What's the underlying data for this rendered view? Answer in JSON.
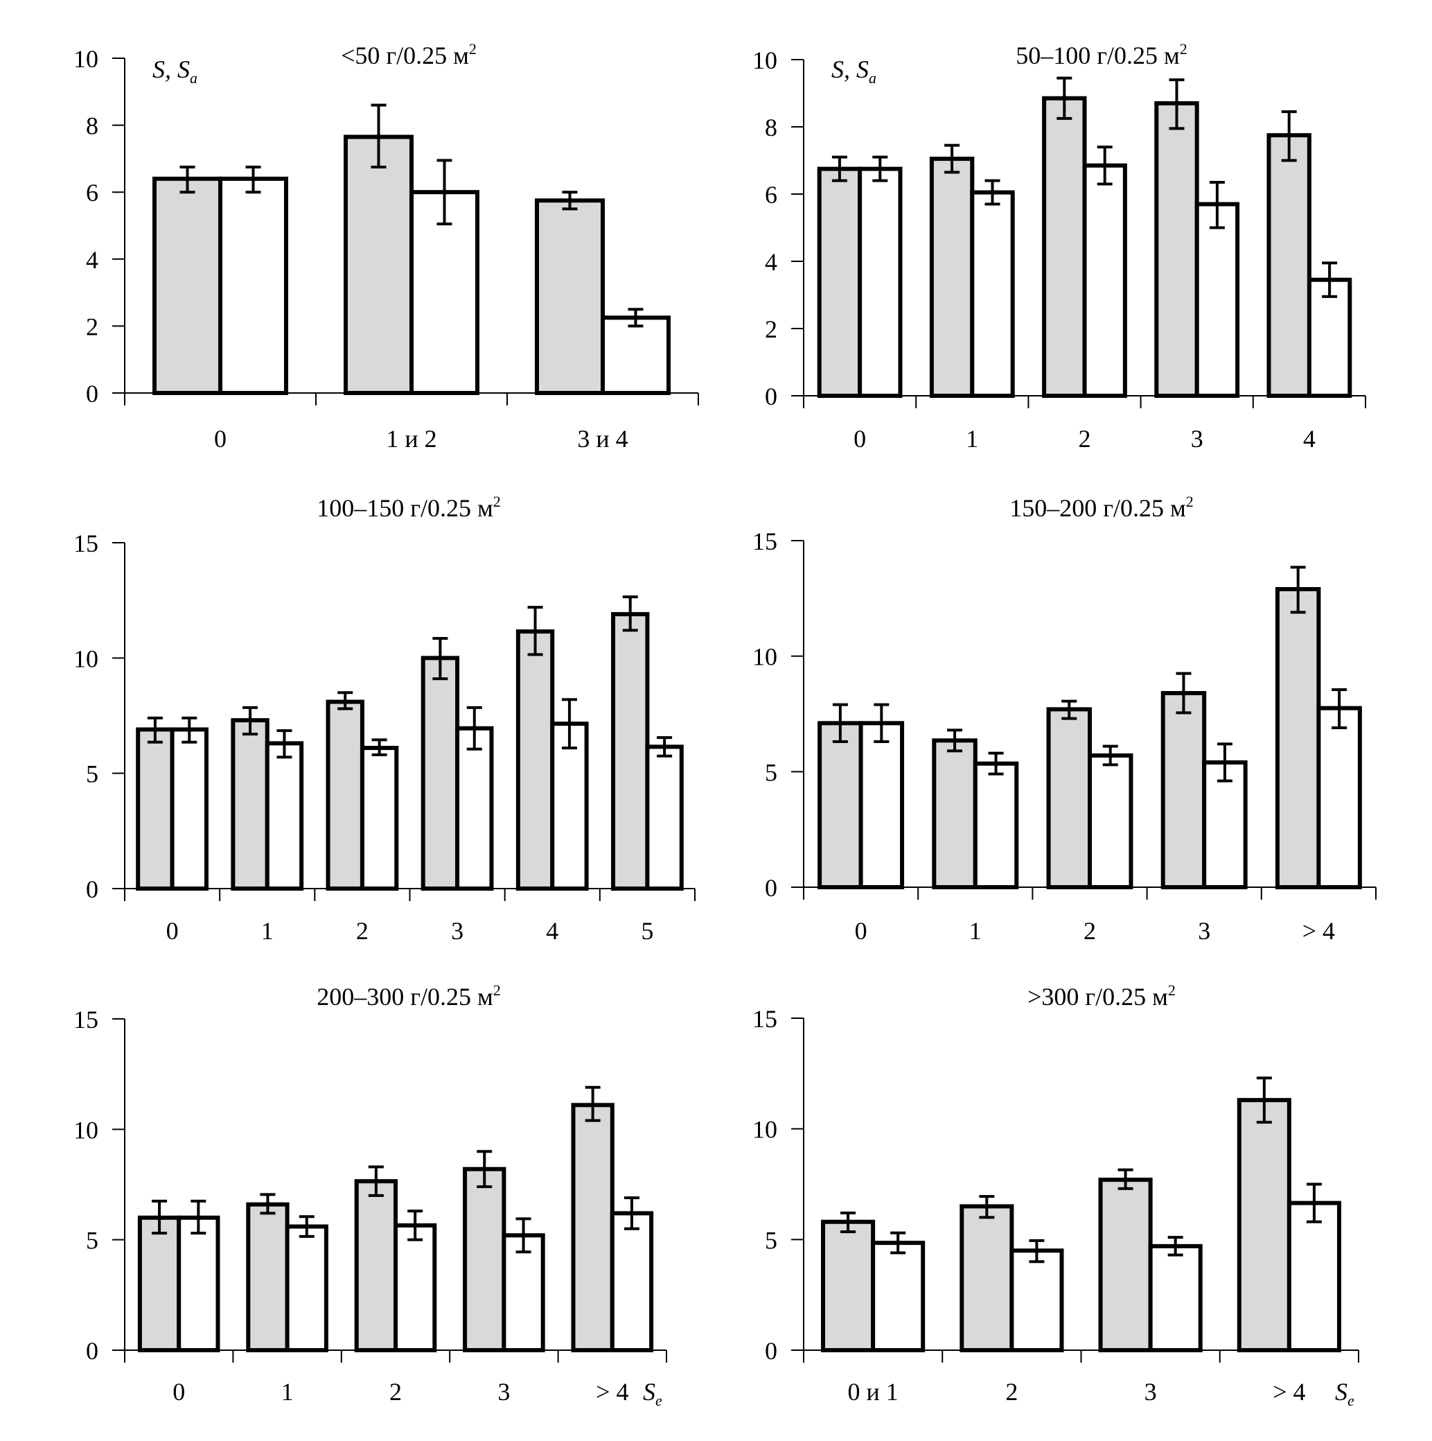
{
  "figure": {
    "ylabel_main": "S",
    "ylabel_sep": ", ",
    "ylabel_sub_base": "S",
    "ylabel_sub": "a",
    "xlabel_base": "S",
    "xlabel_sub": "e",
    "unit_sup": "2"
  },
  "chart_data": [
    {
      "type": "bar",
      "title": "<50 г/0.25 м",
      "title_sup": "2",
      "ylim": [
        0,
        10
      ],
      "yticks": [
        0,
        2,
        4,
        6,
        8,
        10
      ],
      "categories": [
        "0",
        "1 и 2",
        "3 и 4"
      ],
      "show_ylabel": true,
      "show_xlabel": false,
      "series": [
        {
          "name": "S",
          "color": "#d9d9d9",
          "values": [
            6.4,
            7.65,
            5.75
          ],
          "err_low": [
            6.0,
            6.75,
            5.5
          ],
          "err_high": [
            6.75,
            8.6,
            6.0
          ]
        },
        {
          "name": "Sa",
          "color": "#ffffff",
          "values": [
            6.4,
            6.0,
            2.25
          ],
          "err_low": [
            6.0,
            5.05,
            2.0
          ],
          "err_high": [
            6.75,
            6.95,
            2.5
          ]
        }
      ]
    },
    {
      "type": "bar",
      "title": "50–100 г/0.25 м",
      "title_sup": "2",
      "ylim": [
        0,
        10
      ],
      "yticks": [
        0,
        2,
        4,
        6,
        8,
        10
      ],
      "categories": [
        "0",
        "1",
        "2",
        "3",
        "4"
      ],
      "show_ylabel": true,
      "show_xlabel": false,
      "series": [
        {
          "name": "S",
          "color": "#d9d9d9",
          "values": [
            6.75,
            7.05,
            8.85,
            8.7,
            7.75
          ],
          "err_low": [
            6.4,
            6.65,
            8.25,
            7.95,
            7.0
          ],
          "err_high": [
            7.1,
            7.45,
            9.45,
            9.4,
            8.45
          ]
        },
        {
          "name": "Sa",
          "color": "#ffffff",
          "values": [
            6.75,
            6.05,
            6.85,
            5.7,
            3.45
          ],
          "err_low": [
            6.4,
            5.7,
            6.3,
            5.0,
            2.95
          ],
          "err_high": [
            7.1,
            6.4,
            7.4,
            6.35,
            3.95
          ]
        }
      ]
    },
    {
      "type": "bar",
      "title": "100–150 г/0.25 м",
      "title_sup": "2",
      "ylim": [
        0,
        15
      ],
      "yticks": [
        0,
        5,
        10,
        15
      ],
      "categories": [
        "0",
        "1",
        "2",
        "3",
        "4",
        "5"
      ],
      "show_ylabel": false,
      "show_xlabel": false,
      "series": [
        {
          "name": "S",
          "color": "#d9d9d9",
          "values": [
            6.9,
            7.3,
            8.1,
            10.0,
            11.15,
            11.9
          ],
          "err_low": [
            6.35,
            6.7,
            7.8,
            9.1,
            10.15,
            11.2
          ],
          "err_high": [
            7.4,
            7.85,
            8.5,
            10.85,
            12.2,
            12.65
          ]
        },
        {
          "name": "Sa",
          "color": "#ffffff",
          "values": [
            6.9,
            6.3,
            6.1,
            6.95,
            7.15,
            6.15
          ],
          "err_low": [
            6.35,
            5.7,
            5.8,
            6.05,
            6.1,
            5.75
          ],
          "err_high": [
            7.4,
            6.85,
            6.45,
            7.85,
            8.2,
            6.55
          ]
        }
      ]
    },
    {
      "type": "bar",
      "title": "150–200 г/0.25 м",
      "title_sup": "2",
      "ylim": [
        0,
        15
      ],
      "yticks": [
        0,
        5,
        10,
        15
      ],
      "categories": [
        "0",
        "1",
        "2",
        "3",
        "> 4"
      ],
      "show_ylabel": false,
      "show_xlabel": false,
      "series": [
        {
          "name": "S",
          "color": "#d9d9d9",
          "values": [
            7.1,
            6.35,
            7.7,
            8.4,
            12.9
          ],
          "err_low": [
            6.3,
            5.9,
            7.3,
            7.55,
            11.9
          ],
          "err_high": [
            7.9,
            6.8,
            8.05,
            9.25,
            13.85
          ]
        },
        {
          "name": "Sa",
          "color": "#ffffff",
          "values": [
            7.1,
            5.35,
            5.7,
            5.4,
            7.75
          ],
          "err_low": [
            6.3,
            4.9,
            5.3,
            4.6,
            6.9
          ],
          "err_high": [
            7.9,
            5.8,
            6.1,
            6.2,
            8.55
          ]
        }
      ]
    },
    {
      "type": "bar",
      "title": "200–300 г/0.25 м",
      "title_sup": "2",
      "ylim": [
        0,
        15
      ],
      "yticks": [
        0,
        5,
        10,
        15
      ],
      "categories": [
        "0",
        "1",
        "2",
        "3",
        "> 4"
      ],
      "show_ylabel": false,
      "show_xlabel": true,
      "series": [
        {
          "name": "S",
          "color": "#d9d9d9",
          "values": [
            6.0,
            6.6,
            7.65,
            8.2,
            11.1
          ],
          "err_low": [
            5.3,
            6.2,
            7.0,
            7.4,
            10.4
          ],
          "err_high": [
            6.75,
            7.05,
            8.3,
            9.0,
            11.9
          ]
        },
        {
          "name": "Sa",
          "color": "#ffffff",
          "values": [
            6.0,
            5.6,
            5.65,
            5.2,
            6.2
          ],
          "err_low": [
            5.3,
            5.15,
            5.0,
            4.45,
            5.5
          ],
          "err_high": [
            6.75,
            6.05,
            6.3,
            5.95,
            6.9
          ]
        }
      ]
    },
    {
      "type": "bar",
      "title": ">300 г/0.25 м",
      "title_sup": "2",
      "ylim": [
        0,
        15
      ],
      "yticks": [
        0,
        5,
        10,
        15
      ],
      "categories": [
        "0 и 1",
        "2",
        "3",
        "> 4"
      ],
      "show_ylabel": false,
      "show_xlabel": true,
      "series": [
        {
          "name": "S",
          "color": "#d9d9d9",
          "values": [
            5.8,
            6.5,
            7.7,
            11.3
          ],
          "err_low": [
            5.35,
            6.0,
            7.3,
            10.3
          ],
          "err_high": [
            6.2,
            6.95,
            8.15,
            12.3
          ]
        },
        {
          "name": "Sa",
          "color": "#ffffff",
          "values": [
            4.85,
            4.5,
            4.7,
            6.65
          ],
          "err_low": [
            4.4,
            4.0,
            4.3,
            5.8
          ],
          "err_high": [
            5.3,
            4.95,
            5.1,
            7.5
          ]
        }
      ]
    }
  ]
}
